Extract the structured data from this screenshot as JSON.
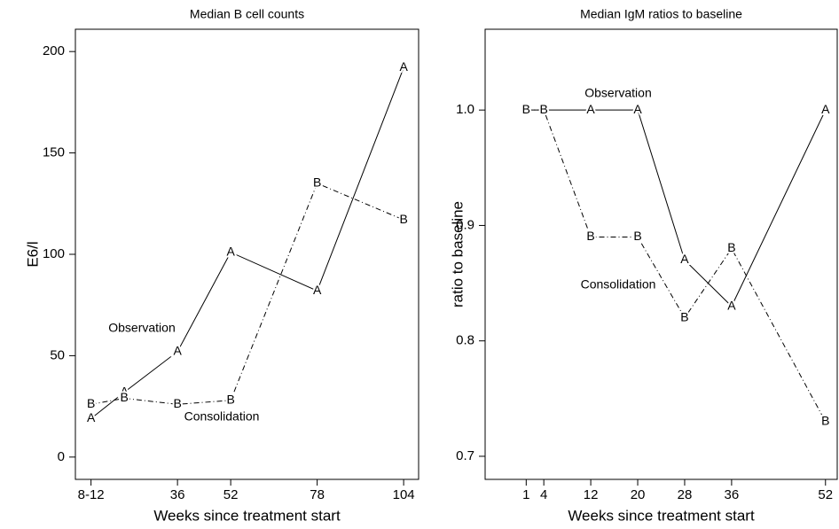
{
  "chart_data": [
    {
      "type": "line",
      "title": "Median B cell counts",
      "xlabel": "Weeks since treatment start",
      "ylabel": "E6/l",
      "x": [
        10,
        20,
        36,
        52,
        78,
        104
      ],
      "series": [
        {
          "name": "Observation",
          "symbol": "A",
          "color": "#000000",
          "style": "solid",
          "values": [
            19,
            32,
            52,
            101,
            82,
            192
          ]
        },
        {
          "name": "Consolidation",
          "symbol": "B",
          "color": "#000000",
          "style": "dashdot",
          "values": [
            26,
            29,
            26,
            28,
            135,
            117
          ]
        }
      ],
      "xlim": [
        5.3,
        108.5
      ],
      "ylim": [
        -11,
        211
      ],
      "xticks": [
        {
          "value": 10,
          "label": "8-12"
        },
        36,
        52,
        78,
        104
      ],
      "yticks": [
        0,
        50,
        100,
        150,
        200
      ]
    },
    {
      "type": "line",
      "title": "Median IgM ratios to baseline",
      "xlabel": "Weeks since treatment start",
      "ylabel": "ratio to baseline",
      "x": [
        1,
        4,
        12,
        20,
        28,
        36,
        52
      ],
      "series": [
        {
          "name": "Observation",
          "symbol": "A",
          "color": "#000000",
          "style": "solid",
          "values": [
            1.0,
            1.0,
            1.0,
            1.0,
            0.87,
            0.83,
            1.0
          ]
        },
        {
          "name": "Consolidation",
          "symbol": "B",
          "color": "#000000",
          "style": "dashdot",
          "values": [
            1.0,
            1.0,
            0.89,
            0.89,
            0.82,
            0.88,
            0.73
          ]
        }
      ],
      "xlim": [
        -6,
        54
      ],
      "ylim": [
        0.68,
        1.07
      ],
      "xticks": [
        1,
        4,
        12,
        20,
        28,
        36,
        52
      ],
      "yticks": [
        0.7,
        0.8,
        0.9,
        {
          "value": 1,
          "label": "1.0"
        }
      ]
    }
  ]
}
